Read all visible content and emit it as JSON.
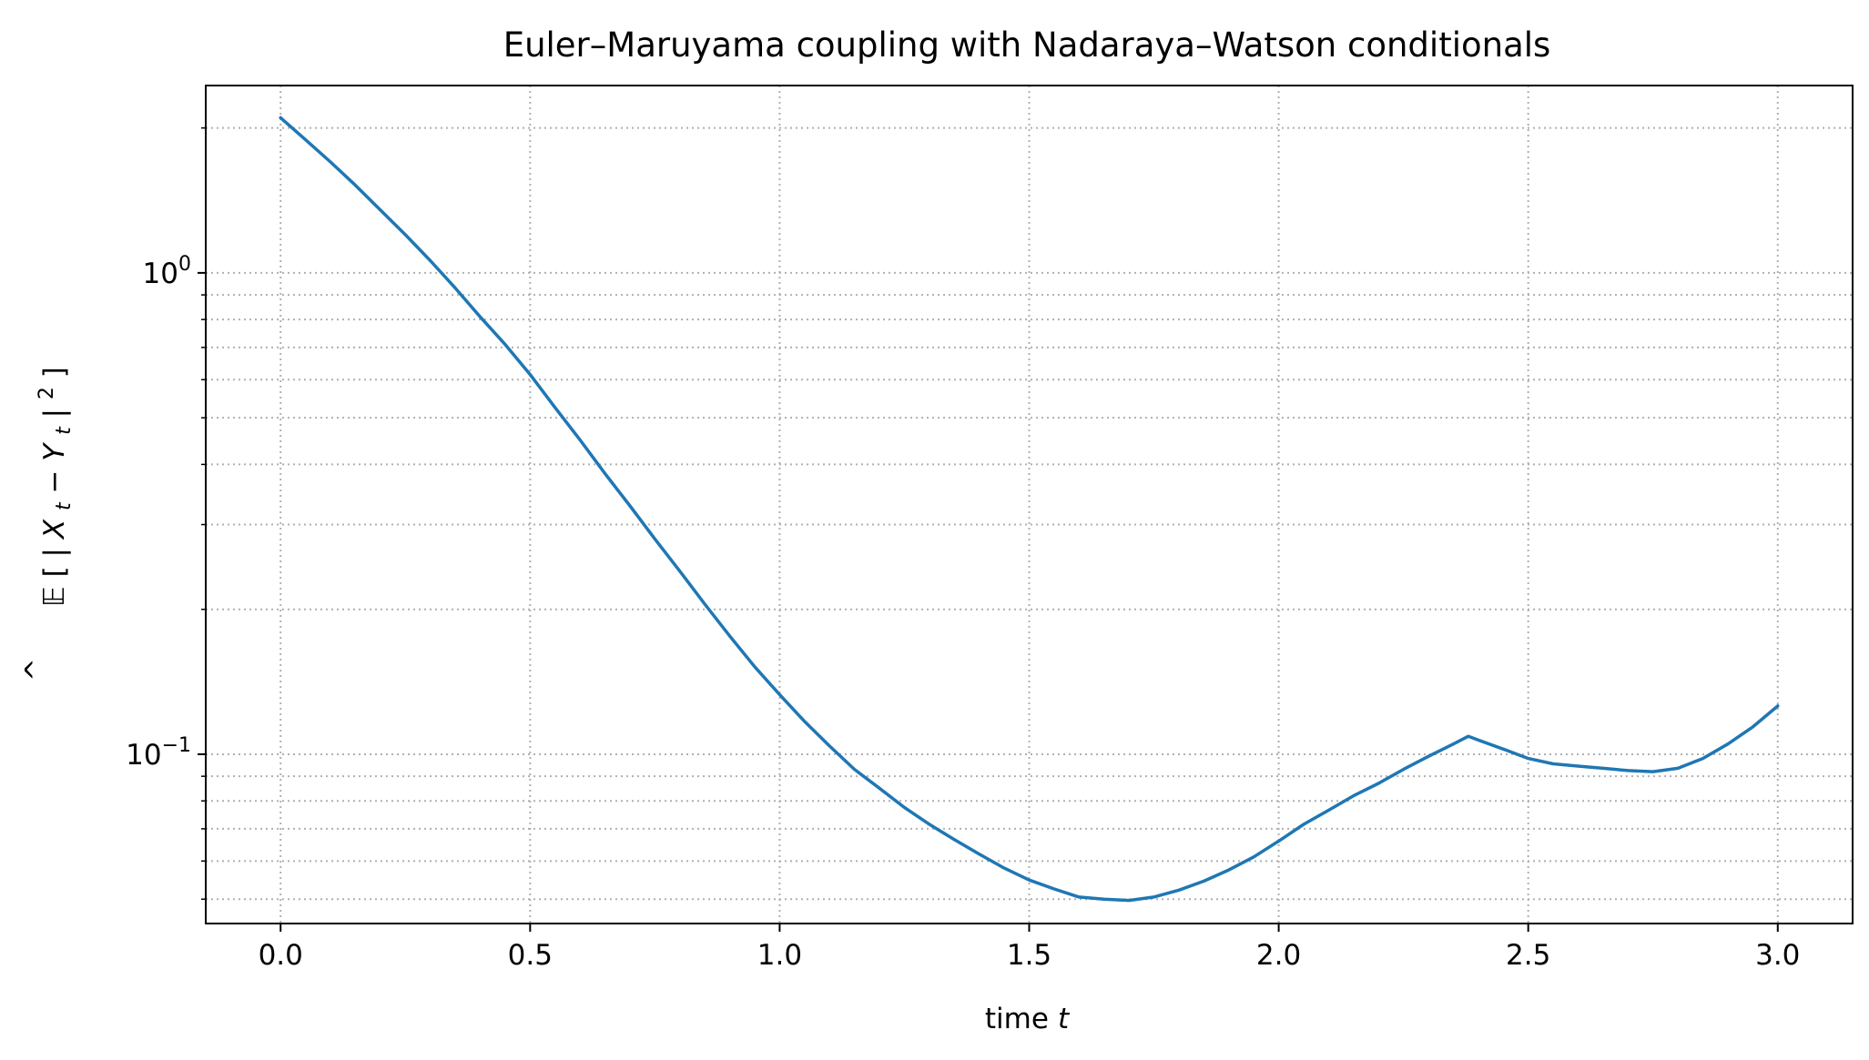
{
  "chart_data": {
    "type": "line",
    "title": "Euler–Maruyama coupling with Nadaraya–Watson conditionals",
    "xlabel": "time",
    "xlabel_var": "t",
    "ylabel_parts": {
      "hat": "^",
      "E": "𝔼",
      "open": "[ |",
      "X": "X",
      "sub1": "t",
      "minus": " − ",
      "Y": "Y",
      "sub2": "t",
      "bar": "|",
      "sup": "2",
      "close": " ]"
    },
    "xlim": [
      -0.15,
      3.15
    ],
    "ylim": [
      0.0445,
      2.45
    ],
    "yscale": "log",
    "grid": true,
    "xticks": [
      {
        "value": 0.0,
        "label": "0.0"
      },
      {
        "value": 0.5,
        "label": "0.5"
      },
      {
        "value": 1.0,
        "label": "1.0"
      },
      {
        "value": 1.5,
        "label": "1.5"
      },
      {
        "value": 2.0,
        "label": "2.0"
      },
      {
        "value": 2.5,
        "label": "2.5"
      },
      {
        "value": 3.0,
        "label": "3.0"
      }
    ],
    "yticks": [
      {
        "value": 1.0,
        "base": "10",
        "exp": "0"
      },
      {
        "value": 0.1,
        "base": "10",
        "exp": "−1"
      }
    ],
    "yminor": [
      0.05,
      0.06,
      0.07,
      0.08,
      0.09,
      0.2,
      0.3,
      0.4,
      0.5,
      0.6,
      0.7,
      0.8,
      0.9,
      2.0
    ],
    "colors": {
      "series": "#1f77b4",
      "grid": "#b0b0b0",
      "axis": "#000000"
    },
    "series": [
      {
        "x": [
          0.0,
          0.05,
          0.1,
          0.15,
          0.2,
          0.25,
          0.3,
          0.35,
          0.4,
          0.45,
          0.5,
          0.55,
          0.6,
          0.65,
          0.7,
          0.75,
          0.8,
          0.85,
          0.9,
          0.95,
          1.0,
          1.05,
          1.1,
          1.15,
          1.2,
          1.25,
          1.3,
          1.35,
          1.4,
          1.45,
          1.5,
          1.55,
          1.6,
          1.65,
          1.7,
          1.75,
          1.8,
          1.85,
          1.9,
          1.95,
          2.0,
          2.05,
          2.1,
          2.15,
          2.2,
          2.25,
          2.3,
          2.35,
          2.38,
          2.4,
          2.45,
          2.5,
          2.55,
          2.6,
          2.65,
          2.7,
          2.75,
          2.8,
          2.85,
          2.9,
          2.95,
          3.0
        ],
        "y": [
          2.1,
          1.89,
          1.7,
          1.52,
          1.35,
          1.2,
          1.06,
          0.93,
          0.81,
          0.71,
          0.615,
          0.525,
          0.45,
          0.383,
          0.328,
          0.28,
          0.24,
          0.205,
          0.176,
          0.152,
          0.133,
          0.117,
          0.104,
          0.093,
          0.085,
          0.0775,
          0.0715,
          0.0665,
          0.062,
          0.058,
          0.0548,
          0.0525,
          0.0505,
          0.05,
          0.0497,
          0.0505,
          0.0522,
          0.0545,
          0.0575,
          0.0612,
          0.066,
          0.0715,
          0.0765,
          0.082,
          0.087,
          0.093,
          0.099,
          0.105,
          0.109,
          0.107,
          0.1025,
          0.098,
          0.0955,
          0.0945,
          0.0935,
          0.0925,
          0.092,
          0.0935,
          0.098,
          0.105,
          0.114,
          0.126
        ]
      }
    ]
  }
}
